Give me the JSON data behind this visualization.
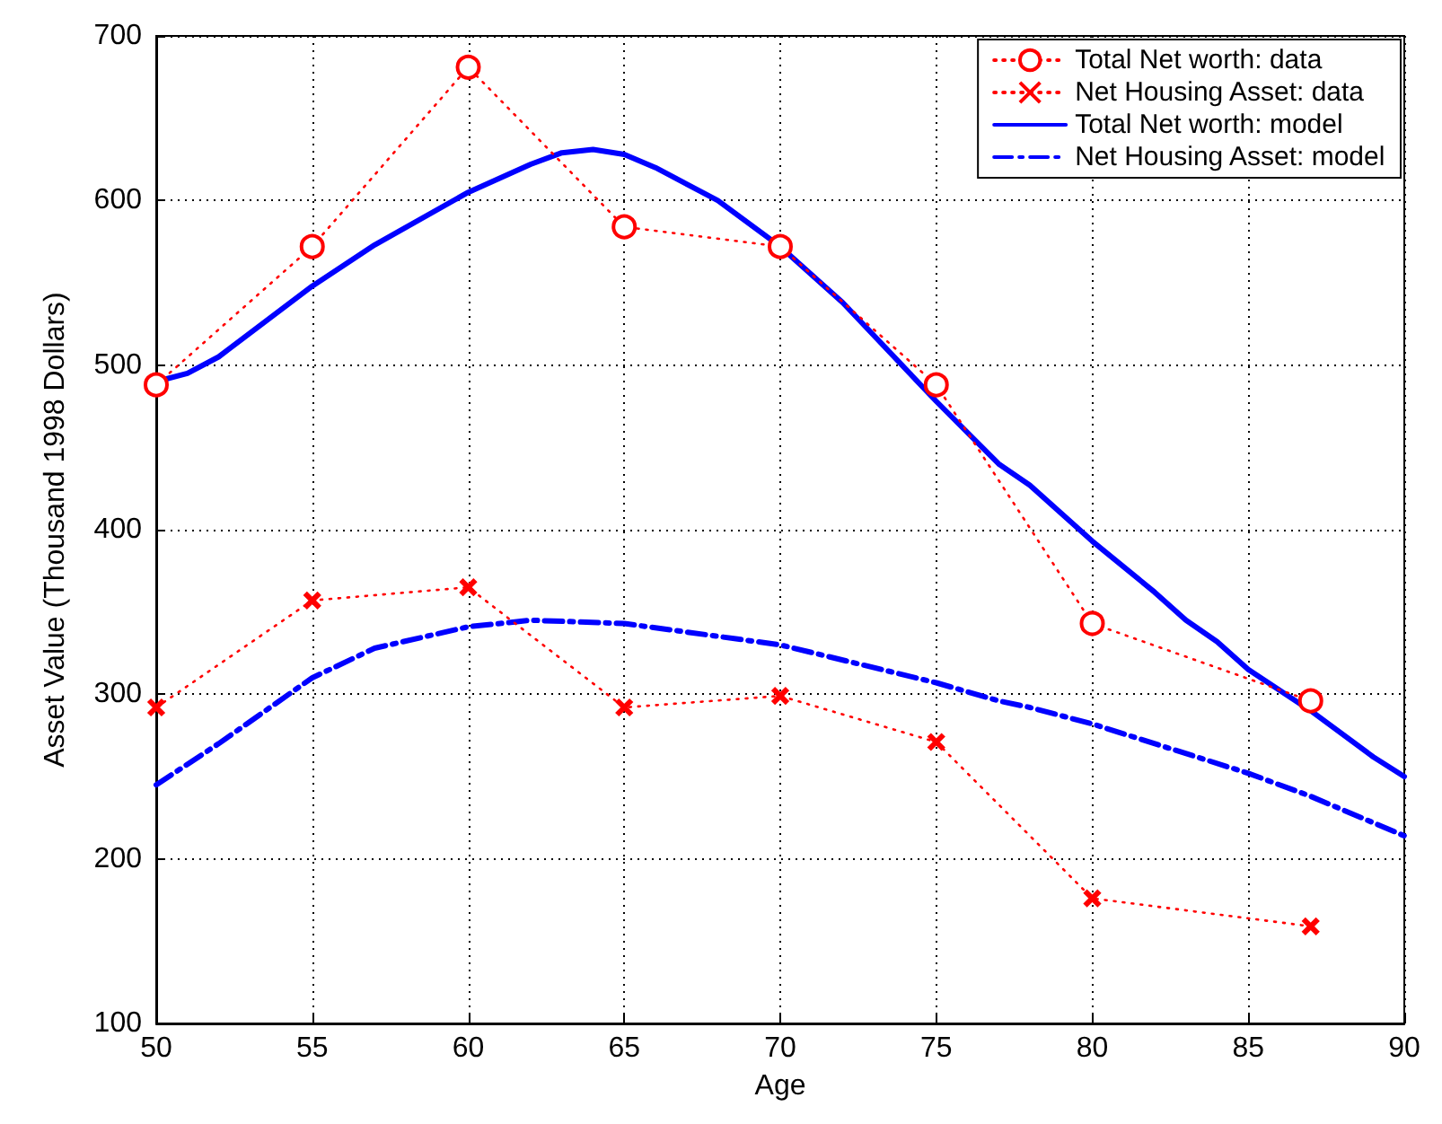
{
  "chart_data": {
    "type": "line",
    "xlabel": "Age",
    "ylabel": "Asset Value (Thousand 1998 Dollars)",
    "xlim": [
      50,
      90
    ],
    "xticks": [
      50,
      55,
      60,
      65,
      70,
      75,
      80,
      85,
      90
    ],
    "ylim": [
      100,
      700
    ],
    "yticks": [
      100,
      200,
      300,
      400,
      500,
      600,
      700
    ],
    "grid": true,
    "legend": "top right",
    "series": [
      {
        "name": "Total Net worth: data",
        "color": "#ff0000",
        "marker": "circle",
        "line_style": "dotted",
        "x": [
          50,
          55,
          60,
          65,
          70,
          75,
          80,
          87
        ],
        "values": [
          488,
          572,
          681,
          584,
          572,
          488,
          343,
          296
        ]
      },
      {
        "name": "Net Housing Asset: data",
        "color": "#ff0000",
        "marker": "cross",
        "line_style": "dotted",
        "x": [
          50,
          55,
          60,
          65,
          70,
          75,
          80,
          87
        ],
        "values": [
          292,
          357,
          365,
          292,
          299,
          271,
          176,
          159
        ]
      },
      {
        "name": "Total Net worth: model",
        "color": "#0000ff",
        "marker": "none",
        "line_style": "solid",
        "x": [
          50,
          51,
          52,
          55,
          57,
          60,
          62,
          63,
          64,
          65,
          66,
          68,
          70,
          72,
          75,
          77,
          78,
          80,
          82,
          83,
          84,
          85,
          87,
          89,
          90
        ],
        "values": [
          490,
          495,
          505,
          548,
          573,
          605,
          622,
          629,
          631,
          628,
          620,
          600,
          572,
          538,
          478,
          440,
          427,
          393,
          362,
          345,
          332,
          315,
          290,
          262,
          250
        ]
      },
      {
        "name": "Net Housing Asset: model",
        "color": "#0000ff",
        "marker": "none",
        "line_style": "dashed",
        "x": [
          50,
          52,
          55,
          57,
          60,
          62,
          65,
          70,
          75,
          77,
          78,
          80,
          85,
          87,
          90
        ],
        "values": [
          245,
          270,
          310,
          328,
          341,
          345,
          343,
          330,
          307,
          296,
          292,
          282,
          252,
          238,
          214
        ]
      }
    ]
  }
}
